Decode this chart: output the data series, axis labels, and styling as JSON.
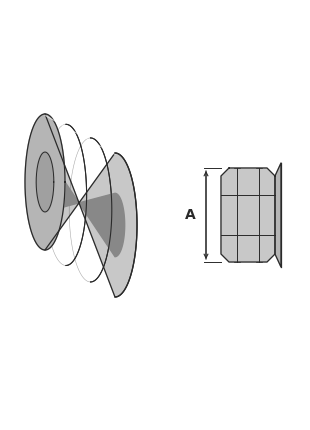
{
  "bg_color": "#ffffff",
  "line_color": "#2a2a2a",
  "c_light": "#c8c8c8",
  "c_mid": "#b5b5b5",
  "c_dark": "#999999",
  "c_very_light": "#e2e2e2",
  "c_inner_dark": "#888888",
  "c_groove": "#d8d8d8",
  "label_A": "A",
  "font_size_label": 10
}
